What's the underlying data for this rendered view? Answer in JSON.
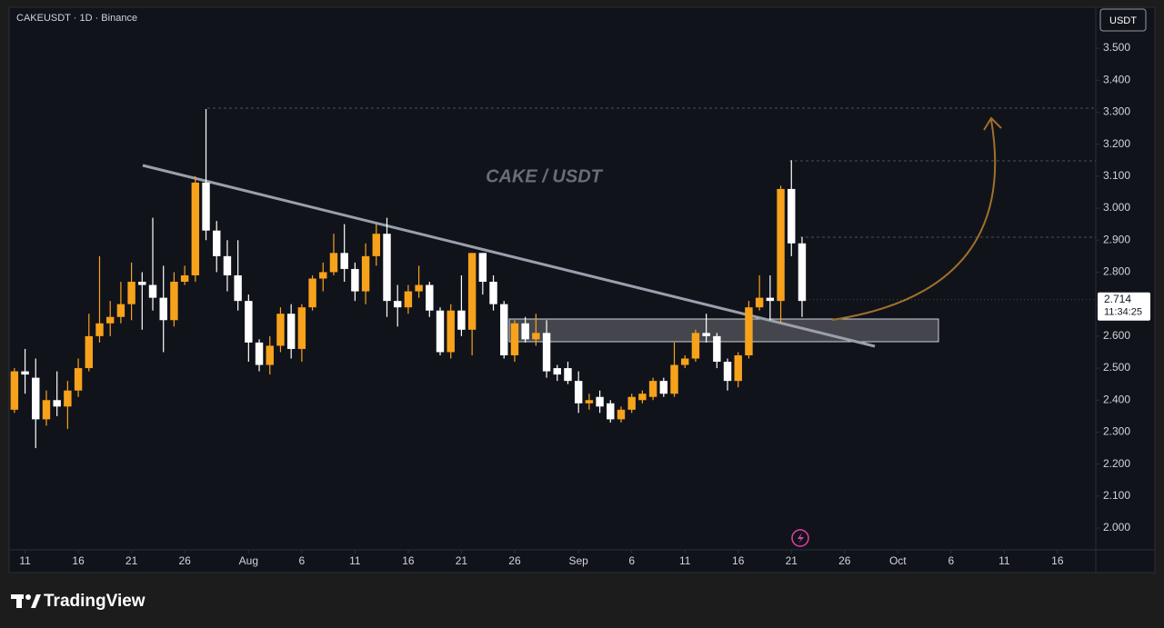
{
  "chart_data": {
    "type": "candlestick",
    "title": "CAKEUSDT · 1D · Binance",
    "watermark": "CAKE / USDT",
    "currency": "USDT",
    "last_price": 2.714,
    "countdown": "11:34:25",
    "up_color": "#f7a21b",
    "down_color": "#ffffff",
    "open": [
      2.37,
      2.49,
      2.47,
      2.34,
      2.4,
      2.38,
      2.43,
      2.5,
      2.6,
      2.64,
      2.66,
      2.7,
      2.77,
      2.76,
      2.72,
      2.65,
      2.77,
      2.79,
      3.08,
      2.93,
      2.85,
      2.79,
      2.71,
      2.58,
      2.51,
      2.57,
      2.67,
      2.56,
      2.69,
      2.78,
      2.8,
      2.86,
      2.81,
      2.74,
      2.85,
      2.92,
      2.71,
      2.69,
      2.74,
      2.76,
      2.68,
      2.55,
      2.68,
      2.62,
      2.86,
      2.77,
      2.7,
      2.54,
      2.64,
      2.59,
      2.61,
      2.5,
      2.5,
      2.46,
      2.39,
      2.41,
      2.39,
      2.34,
      2.37,
      2.4,
      2.41,
      2.46,
      2.42,
      2.51,
      2.53,
      2.61,
      2.6,
      2.52,
      2.46,
      2.54,
      2.69,
      2.72,
      2.71,
      3.06,
      2.89
    ],
    "high": [
      2.5,
      2.56,
      2.53,
      2.43,
      2.49,
      2.46,
      2.53,
      2.67,
      2.85,
      2.71,
      2.77,
      2.83,
      2.8,
      2.97,
      2.82,
      2.8,
      2.82,
      3.1,
      3.31,
      2.96,
      2.9,
      2.9,
      2.73,
      2.59,
      2.6,
      2.69,
      2.7,
      2.7,
      2.79,
      2.83,
      2.92,
      2.95,
      2.83,
      2.89,
      2.95,
      2.97,
      2.76,
      2.76,
      2.82,
      2.77,
      2.69,
      2.7,
      2.79,
      2.86,
      2.86,
      2.79,
      2.71,
      2.65,
      2.66,
      2.67,
      2.65,
      2.51,
      2.52,
      2.49,
      2.42,
      2.43,
      2.4,
      2.38,
      2.42,
      2.43,
      2.47,
      2.47,
      2.58,
      2.54,
      2.62,
      2.67,
      2.61,
      2.53,
      2.55,
      2.71,
      2.79,
      2.79,
      3.07,
      3.15,
      2.91
    ],
    "low": [
      2.36,
      2.42,
      2.25,
      2.32,
      2.35,
      2.31,
      2.41,
      2.49,
      2.58,
      2.6,
      2.64,
      2.65,
      2.62,
      2.68,
      2.55,
      2.63,
      2.76,
      2.77,
      2.9,
      2.8,
      2.74,
      2.68,
      2.52,
      2.49,
      2.48,
      2.55,
      2.53,
      2.52,
      2.68,
      2.74,
      2.79,
      2.77,
      2.71,
      2.7,
      2.82,
      2.66,
      2.63,
      2.67,
      2.72,
      2.66,
      2.54,
      2.53,
      2.6,
      2.54,
      2.73,
      2.68,
      2.53,
      2.52,
      2.58,
      2.57,
      2.47,
      2.46,
      2.45,
      2.36,
      2.37,
      2.36,
      2.33,
      2.33,
      2.36,
      2.39,
      2.4,
      2.41,
      2.41,
      2.5,
      2.52,
      2.58,
      2.5,
      2.43,
      2.44,
      2.53,
      2.68,
      2.65,
      2.64,
      2.85,
      2.66
    ],
    "close": [
      2.49,
      2.48,
      2.34,
      2.4,
      2.38,
      2.43,
      2.5,
      2.6,
      2.64,
      2.66,
      2.7,
      2.77,
      2.76,
      2.72,
      2.65,
      2.77,
      2.79,
      3.08,
      2.93,
      2.85,
      2.79,
      2.71,
      2.58,
      2.51,
      2.57,
      2.67,
      2.56,
      2.69,
      2.78,
      2.8,
      2.86,
      2.81,
      2.74,
      2.85,
      2.92,
      2.71,
      2.69,
      2.74,
      2.76,
      2.68,
      2.55,
      2.68,
      2.62,
      2.86,
      2.77,
      2.7,
      2.54,
      2.64,
      2.59,
      2.61,
      2.49,
      2.48,
      2.46,
      2.39,
      2.4,
      2.38,
      2.34,
      2.37,
      2.41,
      2.42,
      2.46,
      2.42,
      2.51,
      2.53,
      2.61,
      2.6,
      2.52,
      2.46,
      2.54,
      2.69,
      2.72,
      2.71,
      3.06,
      2.89,
      2.71
    ],
    "xlim": [
      -0.5,
      101.6
    ],
    "xticks": [
      {
        "value": 1,
        "label": "11"
      },
      {
        "value": 6,
        "label": "16"
      },
      {
        "value": 11,
        "label": "21"
      },
      {
        "value": 16,
        "label": "26"
      },
      {
        "value": 22,
        "label": "Aug"
      },
      {
        "value": 27,
        "label": "6"
      },
      {
        "value": 32,
        "label": "11"
      },
      {
        "value": 37,
        "label": "16"
      },
      {
        "value": 42,
        "label": "21"
      },
      {
        "value": 47,
        "label": "26"
      },
      {
        "value": 53,
        "label": "Sep"
      },
      {
        "value": 58,
        "label": "6"
      },
      {
        "value": 63,
        "label": "11"
      },
      {
        "value": 68,
        "label": "16"
      },
      {
        "value": 73,
        "label": "21"
      },
      {
        "value": 78,
        "label": "26"
      },
      {
        "value": 83,
        "label": "Oct"
      },
      {
        "value": 88,
        "label": "6"
      },
      {
        "value": 93,
        "label": "11"
      },
      {
        "value": 98,
        "label": "16"
      }
    ],
    "ylim": [
      1.932,
      3.628
    ],
    "yticks": [
      {
        "value": 2.0,
        "label": "2.000"
      },
      {
        "value": 2.1,
        "label": "2.100"
      },
      {
        "value": 2.2,
        "label": "2.200"
      },
      {
        "value": 2.3,
        "label": "2.300"
      },
      {
        "value": 2.4,
        "label": "2.400"
      },
      {
        "value": 2.5,
        "label": "2.500"
      },
      {
        "value": 2.6,
        "label": "2.600"
      },
      {
        "value": 2.7,
        "label": "2.700"
      },
      {
        "value": 2.8,
        "label": "2.800"
      },
      {
        "value": 2.9,
        "label": "2.900"
      },
      {
        "value": 3.0,
        "label": "3.000"
      },
      {
        "value": 3.1,
        "label": "3.100"
      },
      {
        "value": 3.2,
        "label": "3.200"
      },
      {
        "value": 3.3,
        "label": "3.300"
      },
      {
        "value": 3.4,
        "label": "3.400"
      },
      {
        "value": 3.5,
        "label": "3.500"
      }
    ]
  },
  "footer": {
    "brand": "TradingView"
  }
}
